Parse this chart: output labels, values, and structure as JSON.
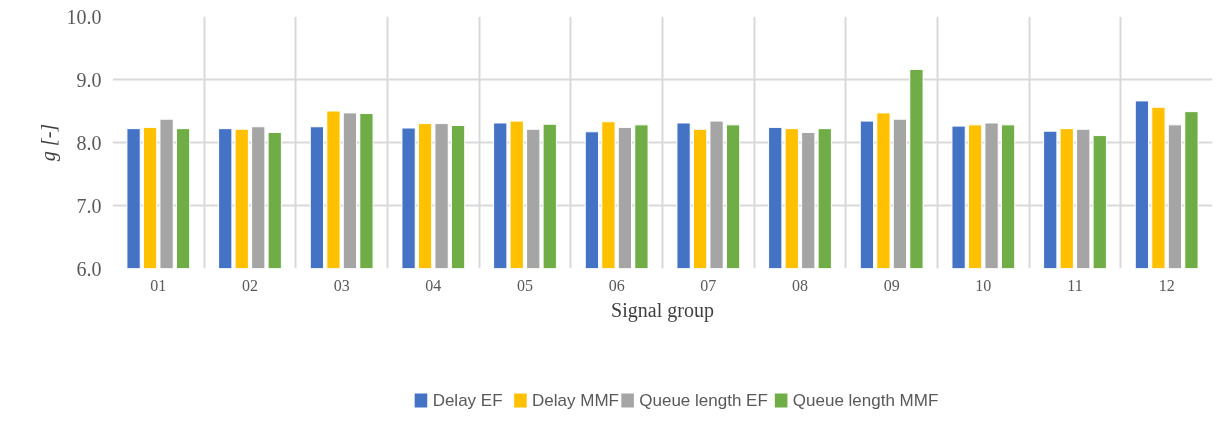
{
  "chart_data": {
    "type": "bar",
    "xlabel": "Signal group",
    "ylabel": "g [-]",
    "categories": [
      "01",
      "02",
      "03",
      "04",
      "05",
      "06",
      "07",
      "08",
      "09",
      "10",
      "11",
      "12"
    ],
    "series": [
      {
        "name": "Delay EF",
        "color": "#4472c4",
        "values": [
          8.22,
          8.22,
          8.25,
          8.23,
          8.31,
          8.17,
          8.31,
          8.24,
          8.34,
          8.26,
          8.18,
          8.66
        ]
      },
      {
        "name": "Delay MMF",
        "color": "#ffc000",
        "values": [
          8.24,
          8.21,
          8.5,
          8.3,
          8.34,
          8.33,
          8.21,
          8.22,
          8.47,
          8.28,
          8.22,
          8.56
        ]
      },
      {
        "name": "Queue length EF",
        "color": "#a5a5a5",
        "values": [
          8.37,
          8.25,
          8.47,
          8.3,
          8.21,
          8.24,
          8.34,
          8.16,
          8.37,
          8.31,
          8.21,
          8.28
        ]
      },
      {
        "name": "Queue length MMF",
        "color": "#70ad47",
        "values": [
          8.22,
          8.16,
          8.46,
          8.27,
          8.29,
          8.28,
          8.28,
          8.22,
          9.16,
          8.28,
          8.11,
          8.49
        ]
      }
    ],
    "ylim": [
      6.0,
      10.0
    ],
    "yticks": [
      {
        "value": 6,
        "label": "6.0"
      },
      {
        "value": 7,
        "label": "7.0"
      },
      {
        "value": 8,
        "label": "8.0"
      },
      {
        "value": 9,
        "label": "9.0"
      },
      {
        "value": 10,
        "label": "10.0"
      }
    ],
    "grid": true,
    "legend": "bottom"
  }
}
